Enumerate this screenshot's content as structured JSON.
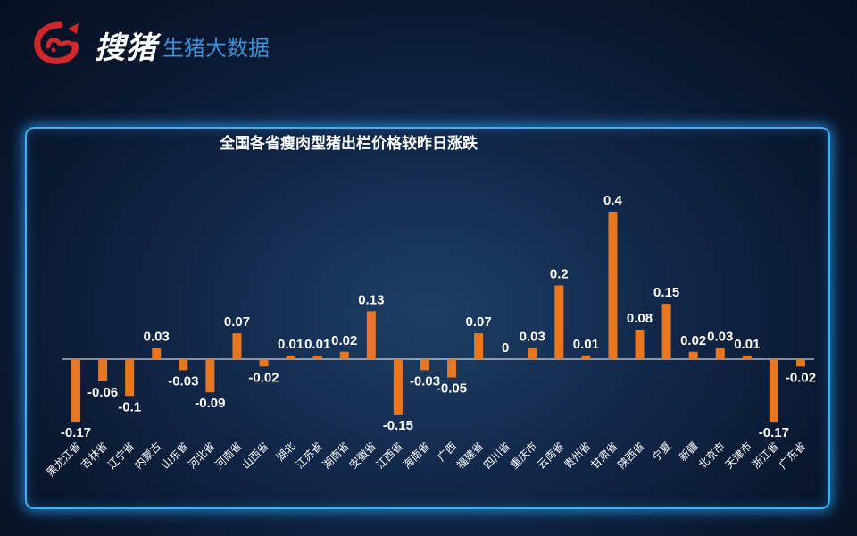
{
  "header": {
    "brand_name": "搜猪",
    "subtitle": "生猪大数据",
    "logo_icon": "pig-head-logo-icon"
  },
  "colors": {
    "bar": "#e87722",
    "panel_border": "#3fb0f0",
    "brand_subtitle": "#3d8fd8",
    "logo": "#d0282c",
    "text": "#ffffff"
  },
  "chart_data": {
    "type": "bar",
    "title": "全国各省瘦肉型猪出栏价格较昨日涨跌",
    "categories": [
      "黑龙江省",
      "吉林省",
      "辽宁省",
      "内蒙古",
      "山东省",
      "河北省",
      "河南省",
      "山西省",
      "湖北",
      "江苏省",
      "湖南省",
      "安徽省",
      "江西省",
      "海南省",
      "广西",
      "福建省",
      "四川省",
      "重庆市",
      "云南省",
      "贵州省",
      "甘肃省",
      "陕西省",
      "宁夏",
      "新疆",
      "北京市",
      "天津市",
      "浙江省",
      "广东省"
    ],
    "values": [
      -0.17,
      -0.06,
      -0.1,
      0.03,
      -0.03,
      -0.09,
      0.07,
      -0.02,
      0.01,
      0.01,
      0.02,
      0.13,
      -0.15,
      -0.03,
      -0.05,
      0.07,
      0,
      0.03,
      0.2,
      0.01,
      0.4,
      0.08,
      0.15,
      0.02,
      0.03,
      0.01,
      -0.17,
      -0.02
    ],
    "labels": [
      "-0.17",
      "-0.06",
      "-0.1",
      "0.03",
      "-0.03",
      "-0.09",
      "0.07",
      "-0.02",
      "0.01",
      "0.01",
      "0.02",
      "0.13",
      "-0.15",
      "-0.03",
      "-0.05",
      "0.07",
      "0",
      "0.03",
      "0.2",
      "0.01",
      "0.4",
      "0.08",
      "0.15",
      "0.02",
      "0.03",
      "0.01",
      "-0.17",
      "-0.02"
    ],
    "xlabel": "",
    "ylabel": "",
    "ylim": [
      -0.17,
      0.4
    ],
    "grid": false,
    "legend": "none"
  }
}
